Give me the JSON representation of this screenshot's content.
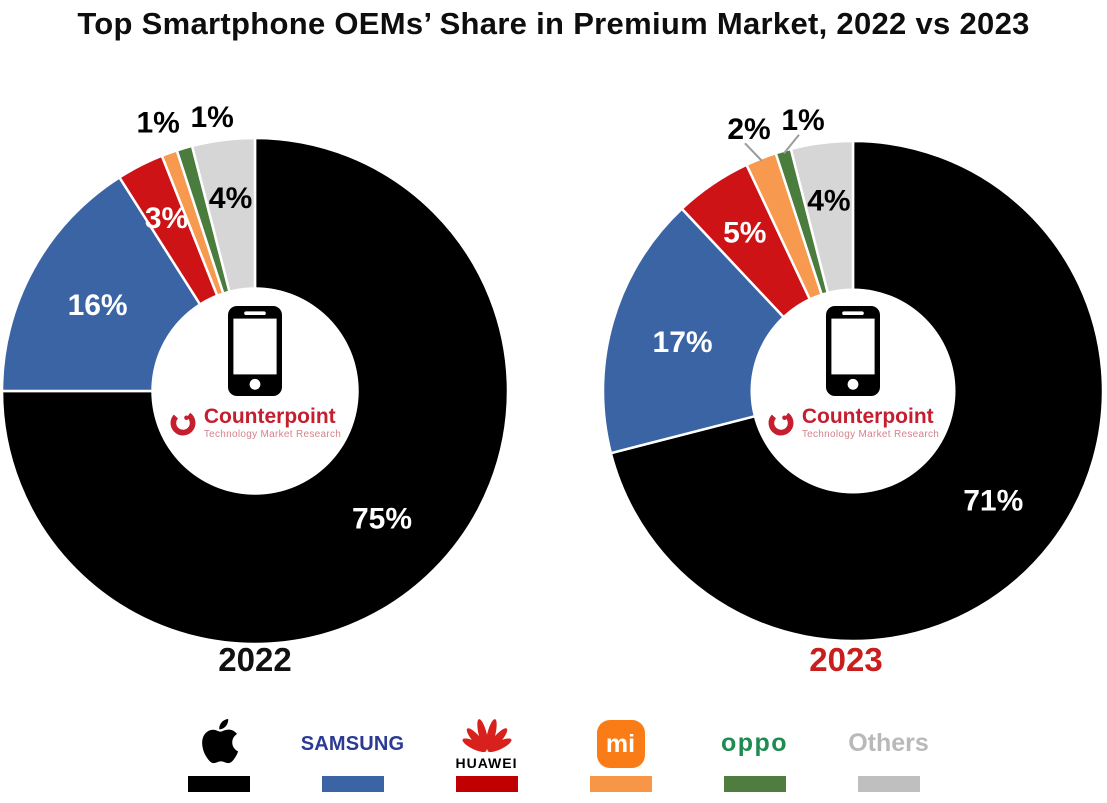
{
  "title": "Top Smartphone OEMs’ Share in Premium Market, 2022 vs 2023",
  "center_logo": {
    "brand": "Counterpoint",
    "tagline": "Technology Market Research",
    "brand_color": "#c41e2f"
  },
  "chart_data": [
    {
      "type": "donut",
      "year_label": "2022",
      "year_label_color": "#111111",
      "unit": "%",
      "start_angle_deg": 0,
      "direction": "clockwise",
      "inner_radius_ratio": 0.41,
      "outside_leader_lines": false,
      "slices": [
        {
          "name": "Apple",
          "value": 75,
          "label": "75%",
          "color": "#000000",
          "label_color": "#ffffff",
          "placement": "inside"
        },
        {
          "name": "Samsung",
          "value": 16,
          "label": "16%",
          "color": "#3b64a5",
          "label_color": "#ffffff",
          "placement": "inside"
        },
        {
          "name": "Huawei",
          "value": 3,
          "label": "3%",
          "color": "#cd1316",
          "label_color": "#ffffff",
          "placement": "inside"
        },
        {
          "name": "Xiaomi",
          "value": 1,
          "label": "1%",
          "color": "#f7994e",
          "label_color": "#000000",
          "placement": "outside"
        },
        {
          "name": "OPPO",
          "value": 1,
          "label": "1%",
          "color": "#4a7c3e",
          "label_color": "#000000",
          "placement": "outside"
        },
        {
          "name": "Others",
          "value": 4,
          "label": "4%",
          "color": "#d6d6d6",
          "label_color": "#000000",
          "placement": "inside"
        }
      ]
    },
    {
      "type": "donut",
      "year_label": "2023",
      "year_label_color": "#c81e1e",
      "unit": "%",
      "start_angle_deg": 0,
      "direction": "clockwise",
      "inner_radius_ratio": 0.41,
      "outside_leader_lines": true,
      "slices": [
        {
          "name": "Apple",
          "value": 71,
          "label": "71%",
          "color": "#000000",
          "label_color": "#ffffff",
          "placement": "inside"
        },
        {
          "name": "Samsung",
          "value": 17,
          "label": "17%",
          "color": "#3b64a5",
          "label_color": "#ffffff",
          "placement": "inside"
        },
        {
          "name": "Huawei",
          "value": 5,
          "label": "5%",
          "color": "#cd1316",
          "label_color": "#ffffff",
          "placement": "inside"
        },
        {
          "name": "Xiaomi",
          "value": 2,
          "label": "2%",
          "color": "#f7994e",
          "label_color": "#000000",
          "placement": "outside"
        },
        {
          "name": "OPPO",
          "value": 1,
          "label": "1%",
          "color": "#4a7c3e",
          "label_color": "#000000",
          "placement": "outside"
        },
        {
          "name": "Others",
          "value": 4,
          "label": "4%",
          "color": "#d6d6d6",
          "label_color": "#000000",
          "placement": "inside"
        }
      ]
    }
  ],
  "legend": [
    {
      "name": "Apple",
      "bar_color": "#000000"
    },
    {
      "name": "Samsung",
      "logo_text": "SAMSUNG",
      "logo_color": "#2b3a94",
      "bar_color": "#3b64a5"
    },
    {
      "name": "Huawei",
      "logo_text": "HUAWEI",
      "logo_color": "#000000",
      "bar_color": "#c00000"
    },
    {
      "name": "Xiaomi",
      "logo_text": "mi",
      "logo_color": "#ffffff",
      "logo_bg": "#f97c16",
      "bar_color": "#f79646"
    },
    {
      "name": "OPPO",
      "logo_text": "oppo",
      "logo_color": "#1e8c50",
      "bar_color": "#4e7d3f"
    },
    {
      "name": "Others",
      "logo_text": "Others",
      "logo_color": "#b9b9b9",
      "bar_color": "#bfbfbf"
    }
  ]
}
